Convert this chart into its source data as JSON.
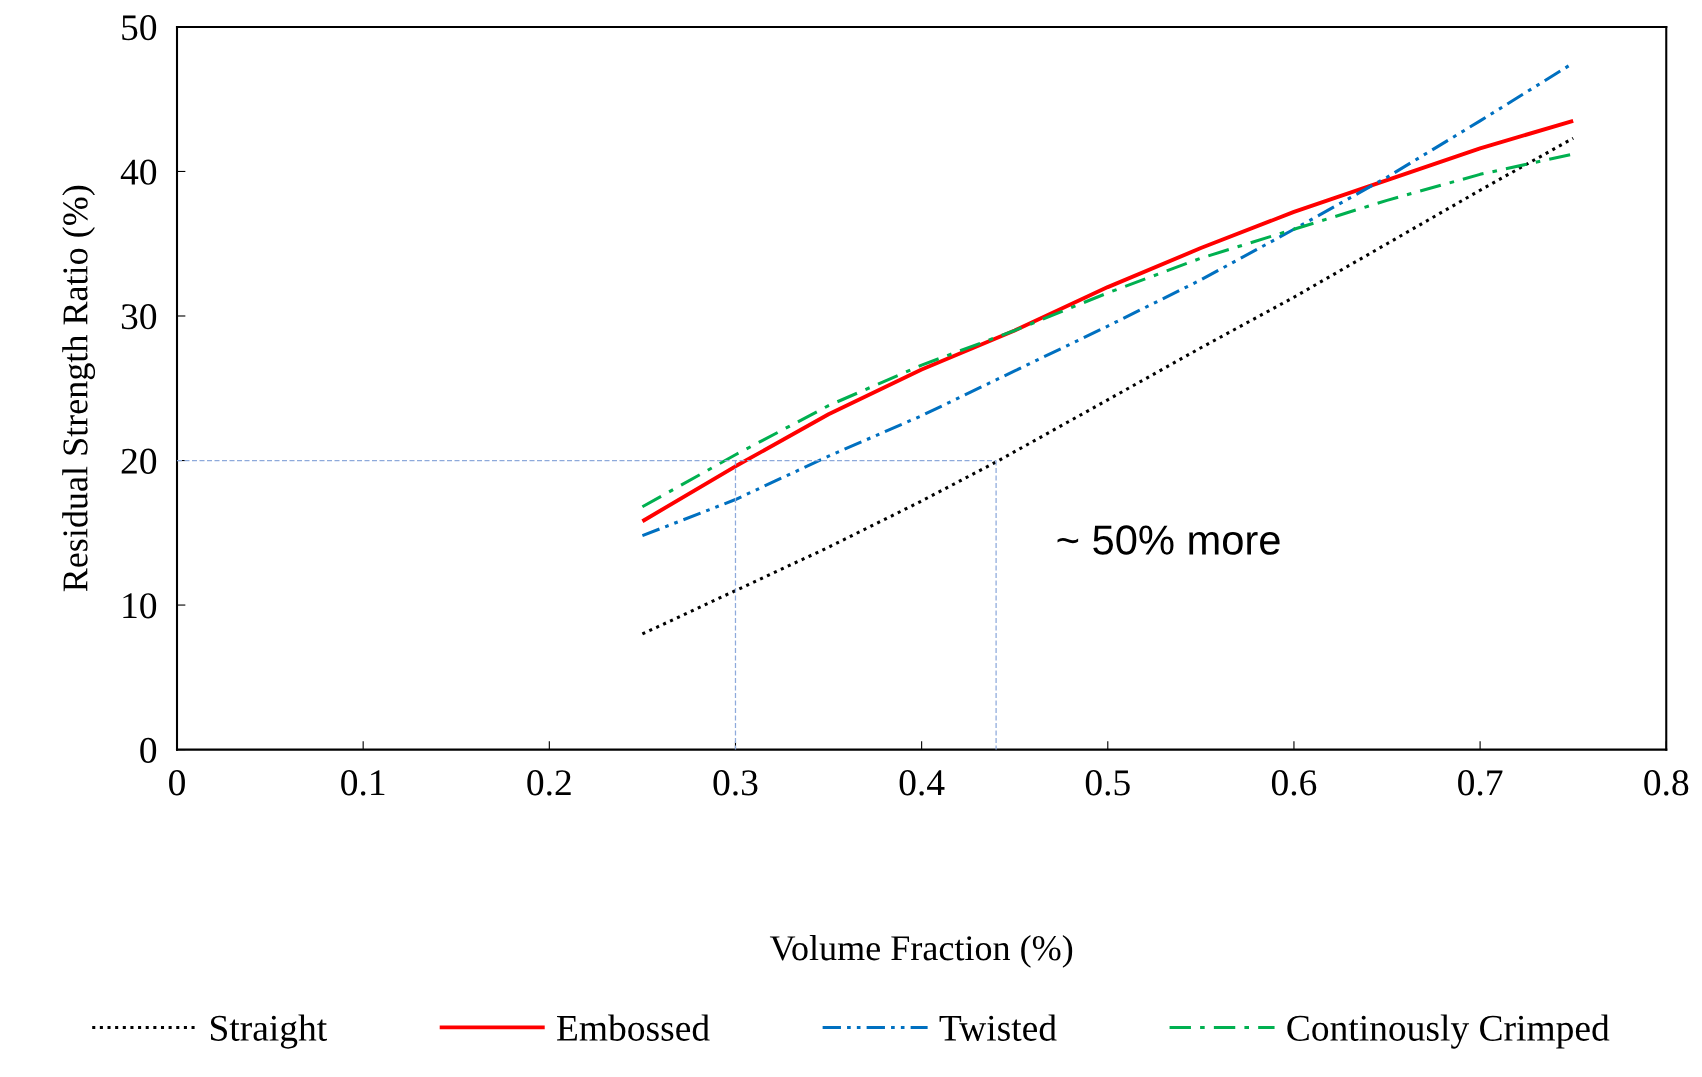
{
  "chart_data": {
    "type": "line",
    "xlabel": "Volume Fraction (%)",
    "ylabel": "Residual Strength Ratio (%)",
    "xlim": [
      0,
      0.8
    ],
    "ylim": [
      0,
      50
    ],
    "xticks": [
      0,
      0.1,
      0.2,
      0.3,
      0.4,
      0.5,
      0.6,
      0.7,
      0.8
    ],
    "yticks": [
      0,
      10,
      20,
      30,
      40,
      50
    ],
    "grid": false,
    "legend": "bottom",
    "marker": "none",
    "series": [
      {
        "name": "Straight",
        "color": "#000000",
        "line_style": "dotted",
        "x": [
          0.25,
          0.3,
          0.35,
          0.4,
          0.44,
          0.5,
          0.55,
          0.6,
          0.65,
          0.7,
          0.75
        ],
        "values": [
          8.0,
          11.0,
          14.0,
          17.2,
          19.9,
          24.2,
          27.8,
          31.3,
          35.0,
          38.7,
          42.3
        ]
      },
      {
        "name": "Embossed",
        "color": "#ff0000",
        "line_style": "solid",
        "x": [
          0.25,
          0.3,
          0.35,
          0.4,
          0.45,
          0.5,
          0.55,
          0.6,
          0.65,
          0.7,
          0.75
        ],
        "values": [
          15.8,
          19.6,
          23.2,
          26.3,
          29.0,
          32.0,
          34.7,
          37.2,
          39.4,
          41.6,
          43.5
        ]
      },
      {
        "name": "Twisted",
        "color": "#0070c0",
        "line_style": "dashdotdot",
        "x": [
          0.25,
          0.3,
          0.35,
          0.4,
          0.45,
          0.5,
          0.55,
          0.6,
          0.65,
          0.7,
          0.75
        ],
        "values": [
          14.8,
          17.3,
          20.3,
          23.1,
          26.2,
          29.3,
          32.5,
          36.0,
          39.6,
          43.5,
          47.5
        ]
      },
      {
        "name": "Continously Crimped",
        "color": "#00b050",
        "line_style": "dashdot",
        "x": [
          0.25,
          0.3,
          0.35,
          0.4,
          0.45,
          0.5,
          0.55,
          0.6,
          0.65,
          0.7,
          0.75
        ],
        "values": [
          16.8,
          20.4,
          23.8,
          26.6,
          29.0,
          31.6,
          34.0,
          36.0,
          38.0,
          39.8,
          41.2
        ]
      },
      {
        "color": "#8eaadb",
        "line_style": "dashed",
        "x": [
          0,
          0.44
        ],
        "values": [
          20,
          20
        ]
      },
      {
        "color": "#8eaadb",
        "line_style": "dashed",
        "x": [
          0.3,
          0.3
        ],
        "values": [
          20,
          0
        ]
      },
      {
        "color": "#8eaadb",
        "line_style": "dashed",
        "x": [
          0.44,
          0.44
        ],
        "values": [
          20,
          0
        ]
      }
    ],
    "annotations": [
      "~ 50% more"
    ]
  }
}
